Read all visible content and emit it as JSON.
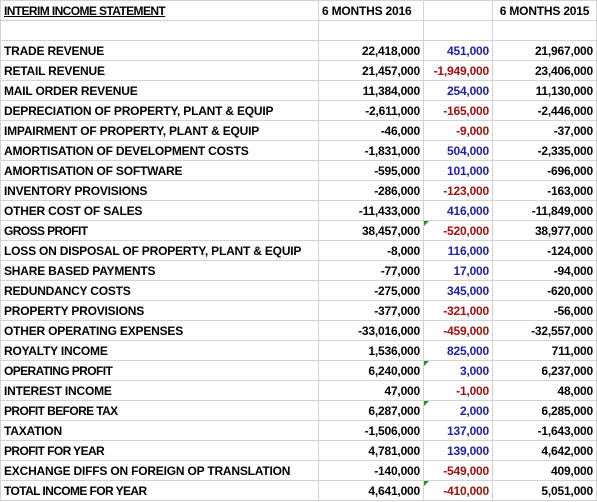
{
  "sheet": {
    "title": "INTERIM INCOME STATEMENT",
    "col_2016": "6 MONTHS 2016",
    "col_2015": "6 MONTHS 2015",
    "colors": {
      "positive_diff": "#1f1fa8",
      "negative_diff": "#a01010",
      "comment_marker": "#2e8b2e",
      "grid": "#d4d4d4"
    },
    "rows": [
      {
        "label": "TRADE REVENUE",
        "v2016": "22,418,000",
        "diff": "451,000",
        "v2015": "21,967,000"
      },
      {
        "label": "RETAIL REVENUE",
        "v2016": "21,457,000",
        "diff": "-1,949,000",
        "v2015": "23,406,000"
      },
      {
        "label": "MAIL ORDER REVENUE",
        "v2016": "11,384,000",
        "diff": "254,000",
        "v2015": "11,130,000"
      },
      {
        "label": "DEPRECIATION OF PROPERTY, PLANT & EQUIP",
        "v2016": "-2,611,000",
        "diff": "-165,000",
        "v2015": "-2,446,000"
      },
      {
        "label": "IMPAIRMENT OF PROPERTY, PLANT & EQUIP",
        "v2016": "-46,000",
        "diff": "-9,000",
        "v2015": "-37,000"
      },
      {
        "label": "AMORTISATION OF DEVELOPMENT COSTS",
        "v2016": "-1,831,000",
        "diff": "504,000",
        "v2015": "-2,335,000"
      },
      {
        "label": "AMORTISATION OF SOFTWARE",
        "v2016": "-595,000",
        "diff": "101,000",
        "v2015": "-696,000"
      },
      {
        "label": "INVENTORY PROVISIONS",
        "v2016": "-286,000",
        "diff": "-123,000",
        "v2015": "-163,000"
      },
      {
        "label": "OTHER COST OF SALES",
        "v2016": "-11,433,000",
        "diff": "416,000",
        "v2015": "-11,849,000"
      },
      {
        "label": "GROSS PROFIT",
        "v2016": "38,457,000",
        "diff": "-520,000",
        "v2015": "38,977,000"
      },
      {
        "label": "LOSS ON DISPOSAL OF PROPERTY, PLANT & EQUIP",
        "v2016": "-8,000",
        "diff": "116,000",
        "v2015": "-124,000"
      },
      {
        "label": "SHARE BASED PAYMENTS",
        "v2016": "-77,000",
        "diff": "17,000",
        "v2015": "-94,000"
      },
      {
        "label": "REDUNDANCY COSTS",
        "v2016": "-275,000",
        "diff": "345,000",
        "v2015": "-620,000"
      },
      {
        "label": "PROPERTY PROVISIONS",
        "v2016": "-377,000",
        "diff": "-321,000",
        "v2015": "-56,000"
      },
      {
        "label": "OTHER OPERATING EXPENSES",
        "v2016": "-33,016,000",
        "diff": "-459,000",
        "v2015": "-32,557,000"
      },
      {
        "label": "ROYALTY INCOME",
        "v2016": "1,536,000",
        "diff": "825,000",
        "v2015": "711,000"
      },
      {
        "label": "OPERATING PROFIT",
        "v2016": "6,240,000",
        "diff": "3,000",
        "v2015": "6,237,000"
      },
      {
        "label": "INTEREST INCOME",
        "v2016": "47,000",
        "diff": "-1,000",
        "v2015": "48,000"
      },
      {
        "label": "PROFIT BEFORE TAX",
        "v2016": "6,287,000",
        "diff": "2,000",
        "v2015": "6,285,000"
      },
      {
        "label": "TAXATION",
        "v2016": "-1,506,000",
        "diff": "137,000",
        "v2015": "-1,643,000"
      },
      {
        "label": "PROFIT FOR YEAR",
        "v2016": "4,781,000",
        "diff": "139,000",
        "v2015": "4,642,000"
      },
      {
        "label": "EXCHANGE DIFFS ON FOREIGN OP TRANSLATION",
        "v2016": "-140,000",
        "diff": "-549,000",
        "v2015": "409,000"
      },
      {
        "label": "TOTAL INCOME FOR YEAR",
        "v2016": "4,641,000",
        "diff": "-410,000",
        "v2015": "5,051,000"
      }
    ]
  }
}
